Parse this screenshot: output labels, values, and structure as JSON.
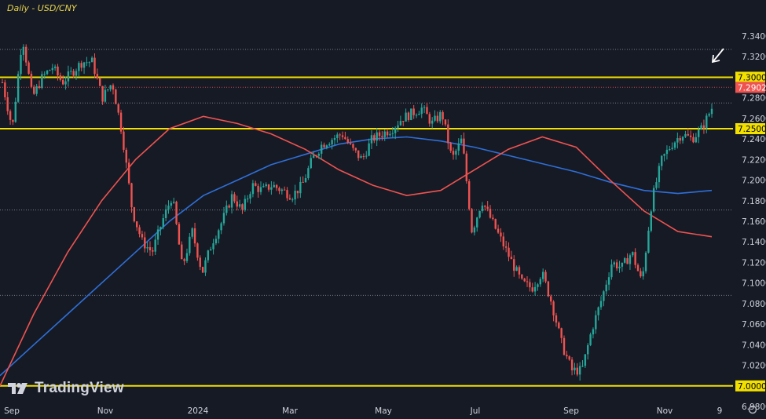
{
  "header": {
    "title": "Daily - USD/CNY"
  },
  "watermark": {
    "brand": "TradingView"
  },
  "colors": {
    "background": "#161a25",
    "up": "#26a69a",
    "down": "#ef5350",
    "ma_fast": "#ef5350",
    "ma_slow": "#2f6fd8",
    "level": "#f2e000",
    "text": "#d1d4dc",
    "arrow": "#ffffff"
  },
  "chart_data": {
    "type": "candlestick",
    "title": "Daily - USD/CNY",
    "xlabel": "",
    "ylabel": "",
    "ylim": [
      6.96,
      7.37
    ],
    "grid": false,
    "x_ticks": [
      "Sep",
      "Nov",
      "2024",
      "Mar",
      "May",
      "Jul",
      "Sep",
      "Nov",
      "9"
    ],
    "y_ticks": [
      "7.3400",
      "7.3200",
      "7.3000",
      "7.2800",
      "7.2600",
      "7.2400",
      "7.2200",
      "7.2000",
      "7.1800",
      "7.1600",
      "7.1400",
      "7.1200",
      "7.1000",
      "7.0800",
      "7.0600",
      "7.0400",
      "7.0200",
      "7.0000",
      "6.9800"
    ],
    "price_tags": [
      {
        "label": "7.3000",
        "value": 7.3,
        "color": "#f2e000"
      },
      {
        "label": "7.2902",
        "value": 7.2902,
        "color": "#ef5350"
      },
      {
        "label": "7.2500",
        "value": 7.25,
        "color": "#f2e000"
      },
      {
        "label": "7.0000",
        "value": 7.0,
        "color": "#f2e000"
      }
    ],
    "horizontal_levels": [
      {
        "value": 7.3,
        "style": "solid"
      },
      {
        "value": 7.25,
        "style": "solid"
      },
      {
        "value": 7.0,
        "style": "solid"
      },
      {
        "value": 7.327,
        "style": "dotted"
      },
      {
        "value": 7.2902,
        "style": "dotted-red"
      },
      {
        "value": 7.275,
        "style": "dotted"
      },
      {
        "value": 7.171,
        "style": "dotted"
      },
      {
        "value": 7.088,
        "style": "dotted"
      }
    ],
    "price_path": [
      [
        "Sep",
        7.295
      ],
      [
        "",
        7.25
      ],
      [
        "",
        7.34
      ],
      [
        "",
        7.28
      ],
      [
        "",
        7.3
      ],
      [
        "",
        7.31
      ],
      [
        "",
        7.295
      ],
      [
        "",
        7.305
      ],
      [
        "",
        7.315
      ],
      [
        "Nov",
        7.315
      ],
      [
        "",
        7.28
      ],
      [
        "",
        7.295
      ],
      [
        "",
        7.245
      ],
      [
        "",
        7.17
      ],
      [
        "",
        7.14
      ],
      [
        "",
        7.13
      ],
      [
        "",
        7.16
      ],
      [
        "",
        7.185
      ],
      [
        "",
        7.115
      ],
      [
        "",
        7.15
      ],
      [
        "",
        7.11
      ],
      [
        "2024",
        7.14
      ],
      [
        "",
        7.16
      ],
      [
        "",
        7.185
      ],
      [
        "",
        7.17
      ],
      [
        "",
        7.195
      ],
      [
        "",
        7.19
      ],
      [
        "",
        7.195
      ],
      [
        "Mar",
        7.19
      ],
      [
        "",
        7.185
      ],
      [
        "",
        7.195
      ],
      [
        "",
        7.22
      ],
      [
        "",
        7.235
      ],
      [
        "",
        7.24
      ],
      [
        "",
        7.245
      ],
      [
        "May",
        7.23
      ],
      [
        "",
        7.22
      ],
      [
        "",
        7.24
      ],
      [
        "",
        7.245
      ],
      [
        "",
        7.25
      ],
      [
        "",
        7.26
      ],
      [
        "",
        7.265
      ],
      [
        "Jul",
        7.27
      ],
      [
        "",
        7.255
      ],
      [
        "",
        7.265
      ],
      [
        "",
        7.22
      ],
      [
        "",
        7.24
      ],
      [
        "",
        7.15
      ],
      [
        "",
        7.18
      ],
      [
        "",
        7.16
      ],
      [
        "",
        7.14
      ],
      [
        "",
        7.12
      ],
      [
        "",
        7.1
      ],
      [
        "Sep",
        7.095
      ],
      [
        "",
        7.11
      ],
      [
        "",
        7.08
      ],
      [
        "",
        7.04
      ],
      [
        "",
        7.015
      ],
      [
        "",
        7.015
      ],
      [
        "",
        7.055
      ],
      [
        "",
        7.085
      ],
      [
        "",
        7.12
      ],
      [
        "",
        7.115
      ],
      [
        "Nov",
        7.13
      ],
      [
        "",
        7.1
      ],
      [
        "",
        7.18
      ],
      [
        "",
        7.22
      ],
      [
        "",
        7.235
      ],
      [
        "",
        7.245
      ],
      [
        "",
        7.24
      ],
      [
        "",
        7.25
      ],
      [
        "9",
        7.27
      ]
    ],
    "series": [
      {
        "name": "",
        "values": [
          7.01,
          7.04,
          7.07,
          7.1,
          7.13,
          7.16,
          7.185,
          7.2,
          7.215,
          7.225,
          7.235,
          7.24,
          7.242,
          7.238,
          7.232,
          7.224,
          7.216,
          7.208,
          7.198,
          7.19,
          7.187,
          7.19
        ]
      },
      {
        "name": "",
        "values": [
          7.0,
          7.07,
          7.13,
          7.18,
          7.22,
          7.25,
          7.262,
          7.255,
          7.245,
          7.23,
          7.21,
          7.195,
          7.185,
          7.19,
          7.21,
          7.23,
          7.242,
          7.232,
          7.2,
          7.17,
          7.15,
          7.145
        ]
      }
    ]
  }
}
